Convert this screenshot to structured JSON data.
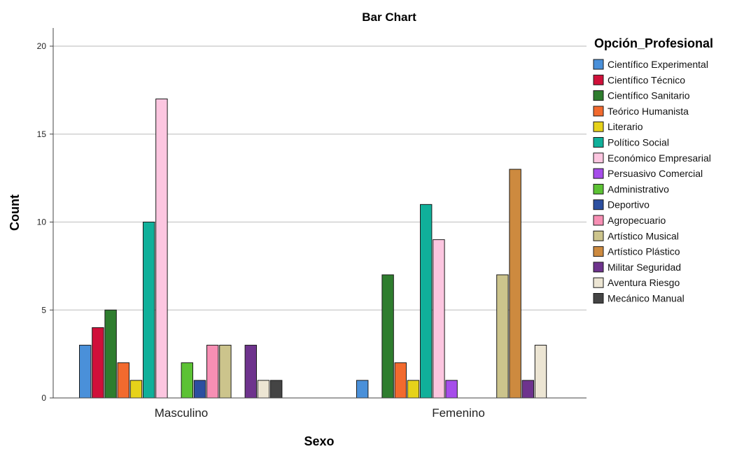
{
  "chart_data": {
    "type": "bar",
    "title": "Bar Chart",
    "xlabel": "Sexo",
    "ylabel": "Count",
    "ylim": [
      0,
      21
    ],
    "yticks": [
      0,
      5,
      10,
      15,
      20
    ],
    "grid": true,
    "legend_position": "right",
    "legend_title": "Opción_Profesional",
    "categories": [
      "Masculino",
      "Femenino"
    ],
    "series": [
      {
        "name": "Científico Experimental",
        "color": "#4a90d9",
        "values": [
          3,
          1
        ]
      },
      {
        "name": "Científico Técnico",
        "color": "#d0103a",
        "values": [
          4,
          0
        ]
      },
      {
        "name": "Científico Sanitario",
        "color": "#2e7d2e",
        "values": [
          5,
          7
        ]
      },
      {
        "name": "Teórico Humanista",
        "color": "#f26a2e",
        "values": [
          2,
          2
        ]
      },
      {
        "name": "Literario",
        "color": "#e6d21a",
        "values": [
          1,
          1
        ]
      },
      {
        "name": "Político Social",
        "color": "#10b09a",
        "values": [
          10,
          11
        ]
      },
      {
        "name": "Económico Empresarial",
        "color": "#fcc6e0",
        "values": [
          17,
          9
        ]
      },
      {
        "name": "Persuasivo Comercial",
        "color": "#a64dea",
        "values": [
          0,
          1
        ]
      },
      {
        "name": "Administrativo",
        "color": "#5cc234",
        "values": [
          2,
          0
        ]
      },
      {
        "name": "Deportivo",
        "color": "#2c4fa0",
        "values": [
          1,
          0
        ]
      },
      {
        "name": "Agropecuario",
        "color": "#f78fb4",
        "values": [
          3,
          0
        ]
      },
      {
        "name": "Artístico Musical",
        "color": "#ccc48c",
        "values": [
          3,
          7
        ]
      },
      {
        "name": "Artístico Plástico",
        "color": "#cd8a3f",
        "values": [
          0,
          13
        ]
      },
      {
        "name": "Militar Seguridad",
        "color": "#6e338d",
        "values": [
          3,
          1
        ]
      },
      {
        "name": "Aventura Riesgo",
        "color": "#ece5d3",
        "values": [
          1,
          3
        ]
      },
      {
        "name": "Mecánico Manual",
        "color": "#444444",
        "values": [
          1,
          0
        ]
      }
    ]
  }
}
